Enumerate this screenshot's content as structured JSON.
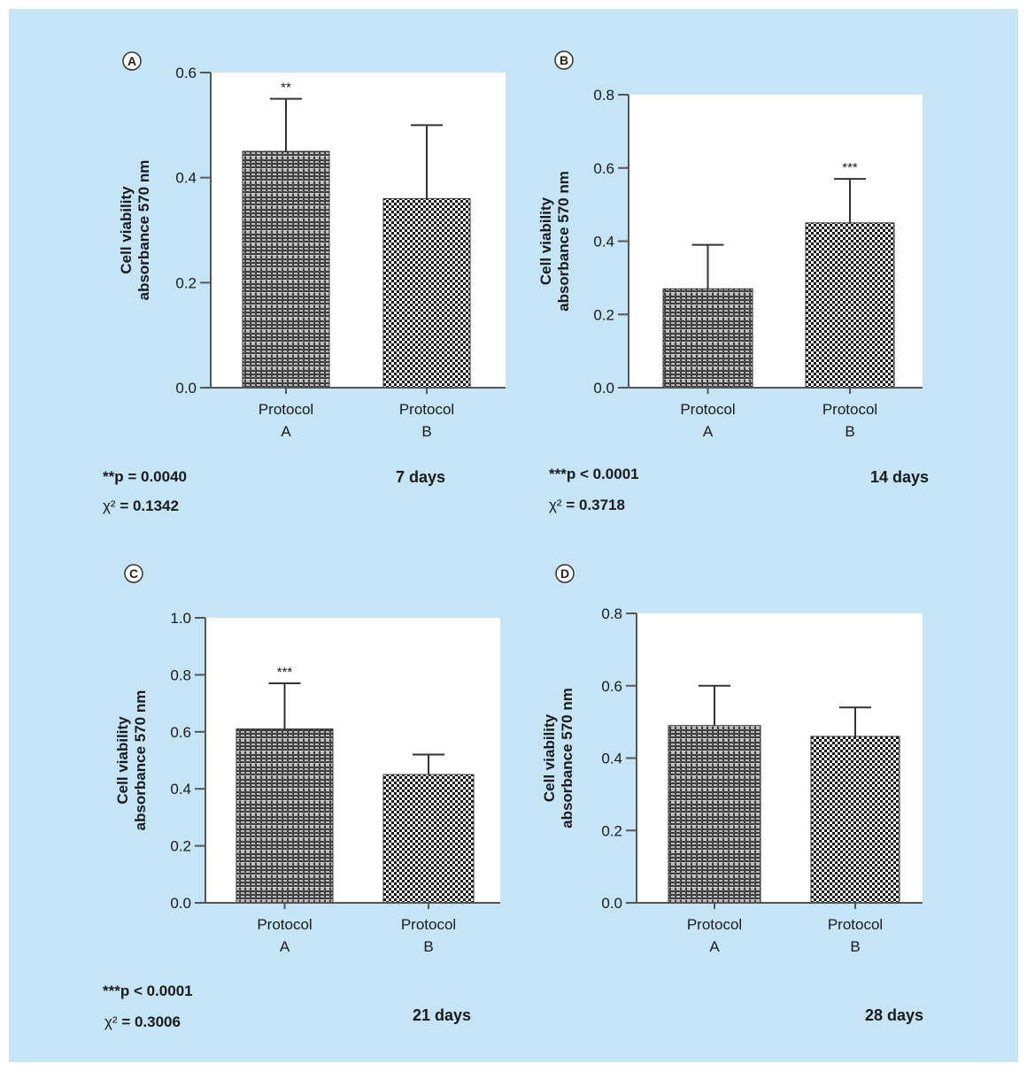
{
  "chart_data": [
    {
      "type": "bar",
      "panel_label": "A",
      "categories": [
        [
          "Protocol",
          "A"
        ],
        [
          "Protocol",
          "B"
        ]
      ],
      "values": [
        0.45,
        0.36
      ],
      "error_upper": [
        0.55,
        0.5
      ],
      "significance": [
        "**",
        ""
      ],
      "ylabel": [
        "Cell viability",
        "absorbance 570 nm"
      ],
      "yticks": [
        "0.0",
        "0.2",
        "0.4",
        "0.6"
      ],
      "ylim": [
        0,
        0.6
      ],
      "duration": "7 days",
      "stat_p": "**p = 0.0040",
      "stat_chi_prefix": "χ²",
      "stat_chi_value": " = 0.1342"
    },
    {
      "type": "bar",
      "panel_label": "B",
      "categories": [
        [
          "Protocol",
          "A"
        ],
        [
          "Protocol",
          "B"
        ]
      ],
      "values": [
        0.27,
        0.45
      ],
      "error_upper": [
        0.39,
        0.57
      ],
      "significance": [
        "",
        "***"
      ],
      "ylabel": [
        "Cell viability",
        "absorbance 570 nm"
      ],
      "yticks": [
        "0.0",
        "0.2",
        "0.4",
        "0.6",
        "0.8"
      ],
      "ylim": [
        0,
        0.8
      ],
      "duration": "14 days",
      "stat_p": "***p < 0.0001",
      "stat_chi_prefix": "χ²",
      "stat_chi_value": " = 0.3718"
    },
    {
      "type": "bar",
      "panel_label": "C",
      "categories": [
        [
          "Protocol",
          "A"
        ],
        [
          "Protocol",
          "B"
        ]
      ],
      "values": [
        0.61,
        0.45
      ],
      "error_upper": [
        0.77,
        0.52
      ],
      "significance": [
        "***",
        ""
      ],
      "ylabel": [
        "Cell viability",
        "absorbance 570 nm"
      ],
      "yticks": [
        "0.0",
        "0.2",
        "0.4",
        "0.6",
        "0.8",
        "1.0"
      ],
      "ylim": [
        0,
        1.0
      ],
      "duration": "21 days",
      "stat_p": "***p < 0.0001",
      "stat_chi_prefix": "χ²",
      "stat_chi_value": " = 0.3006"
    },
    {
      "type": "bar",
      "panel_label": "D",
      "categories": [
        [
          "Protocol",
          "A"
        ],
        [
          "Protocol",
          "B"
        ]
      ],
      "values": [
        0.49,
        0.46
      ],
      "error_upper": [
        0.6,
        0.54
      ],
      "significance": [
        "",
        ""
      ],
      "ylabel": [
        "Cell viability",
        "absorbance 570 nm"
      ],
      "yticks": [
        "0.0",
        "0.2",
        "0.4",
        "0.6",
        "0.8"
      ],
      "ylim": [
        0,
        0.8
      ],
      "duration": "28 days",
      "stat_p": "",
      "stat_chi_prefix": "",
      "stat_chi_value": ""
    }
  ],
  "colors": {
    "figure_background": "#c5e4f5",
    "plot_background": "#ffffff",
    "bar_dark": "#1a1a1a",
    "axis": "#555555"
  }
}
